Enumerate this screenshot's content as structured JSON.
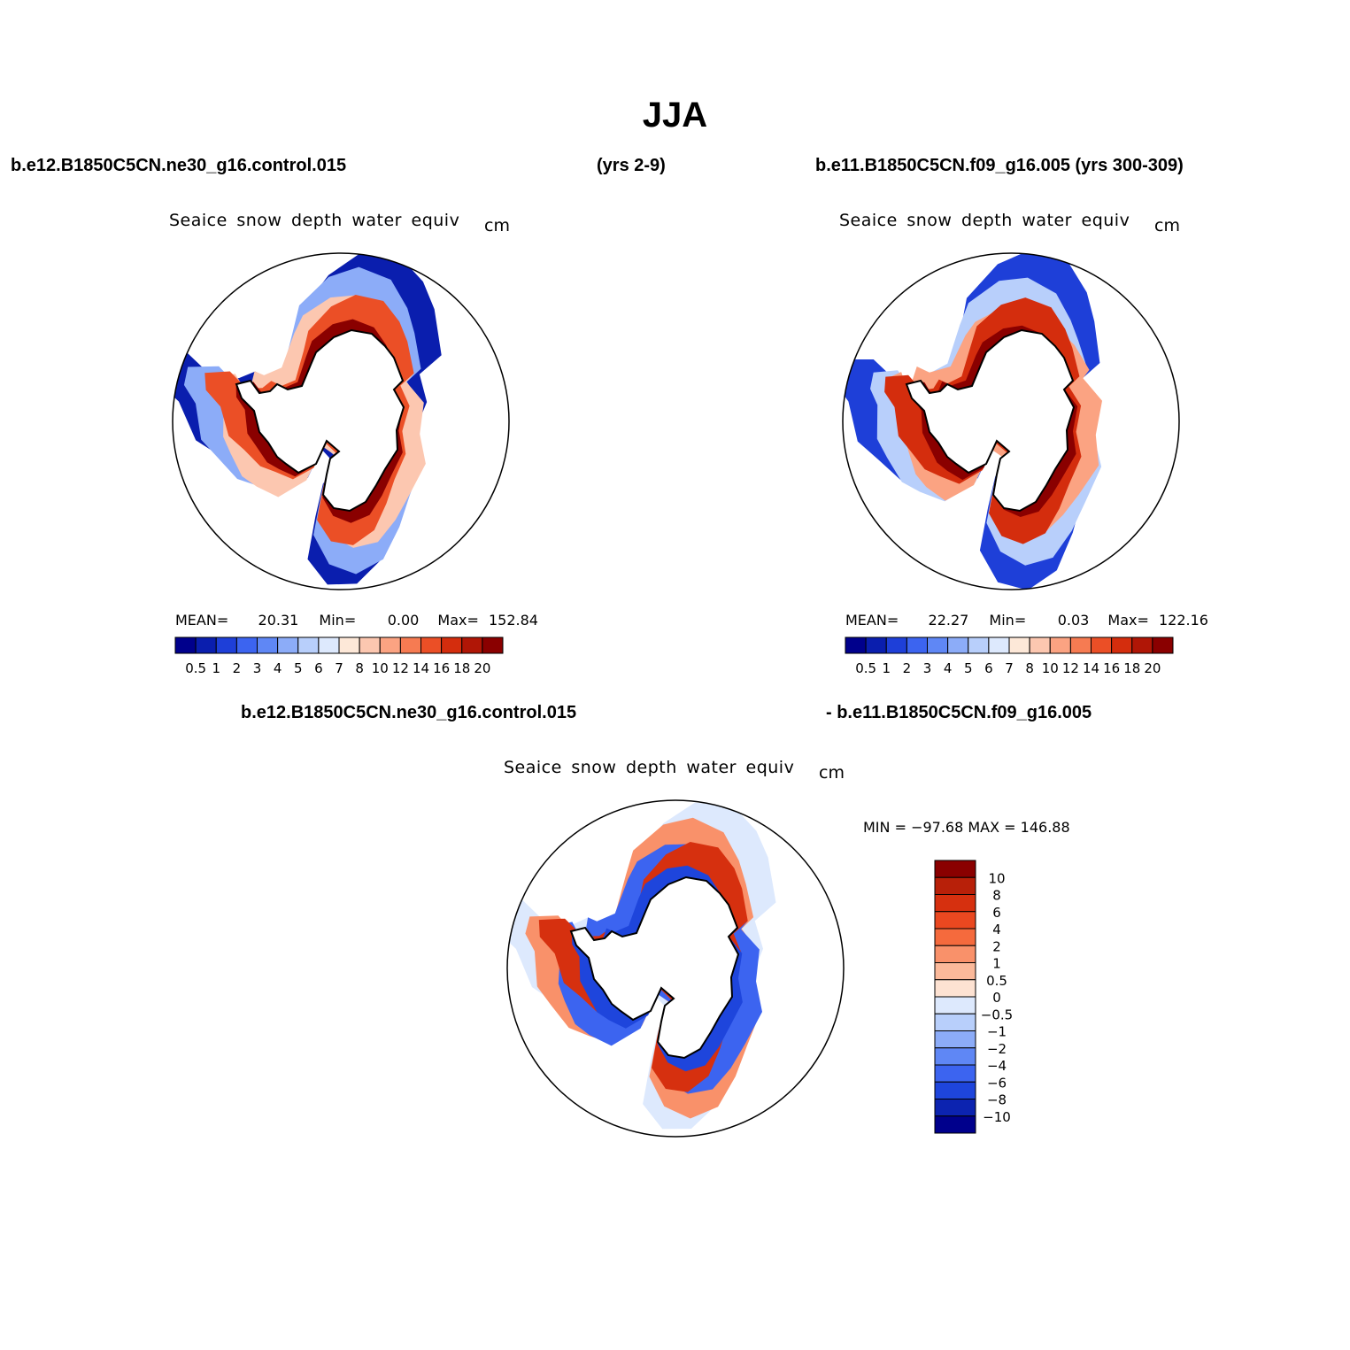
{
  "figure": {
    "title": "JJA",
    "case_a": "b.e12.B1850C5CN.ne30_g16.control.015",
    "case_a_years": "(yrs 2-9)",
    "case_b": "b.e11.B1850C5CN.f09_g16.005 (yrs 300-309)",
    "diff_case_a": "b.e12.B1850C5CN.ne30_g16.control.015",
    "diff_case_b": "- b.e11.B1850C5CN.f09_g16.005"
  },
  "chart_data": [
    {
      "type": "heatmap",
      "projection": "south-polar-stereographic",
      "title": "Seaice snow depth water equiv",
      "units": "cm",
      "stats": {
        "mean_label": "MEAN=",
        "mean": "20.31",
        "min_label": "Min=",
        "min": "0.00",
        "max_label": "Max=",
        "max": "152.84"
      },
      "colorbar": {
        "orientation": "horizontal",
        "levels": [
          "0.5",
          "1",
          "2",
          "3",
          "4",
          "5",
          "6",
          "7",
          "8",
          "10",
          "12",
          "14",
          "16",
          "18",
          "20"
        ],
        "colors": [
          "#00008c",
          "#0a1eae",
          "#1e3fd8",
          "#3c64f0",
          "#5f87f5",
          "#8cacf8",
          "#b8cffb",
          "#dde9fd",
          "#fde8d8",
          "#fcc7b0",
          "#fba382",
          "#f67b52",
          "#eb4f26",
          "#d42d0d",
          "#b01606",
          "#8a0000"
        ]
      }
    },
    {
      "type": "heatmap",
      "projection": "south-polar-stereographic",
      "title": "Seaice snow depth water equiv",
      "units": "cm",
      "stats": {
        "mean_label": "MEAN=",
        "mean": "22.27",
        "min_label": "Min=",
        "min": "0.03",
        "max_label": "Max=",
        "max": "122.16"
      },
      "colorbar": {
        "orientation": "horizontal",
        "levels": [
          "0.5",
          "1",
          "2",
          "3",
          "4",
          "5",
          "6",
          "7",
          "8",
          "10",
          "12",
          "14",
          "16",
          "18",
          "20"
        ],
        "colors": [
          "#00008c",
          "#0a1eae",
          "#1e3fd8",
          "#3c64f0",
          "#5f87f5",
          "#8cacf8",
          "#b8cffb",
          "#dde9fd",
          "#fde8d8",
          "#fcc7b0",
          "#fba382",
          "#f67b52",
          "#eb4f26",
          "#d42d0d",
          "#b01606",
          "#8a0000"
        ]
      }
    },
    {
      "type": "heatmap",
      "projection": "south-polar-stereographic",
      "title": "Seaice snow depth water equiv",
      "units": "cm",
      "stats": {
        "text": "MIN = −97.68 MAX = 146.88"
      },
      "colorbar": {
        "orientation": "vertical",
        "levels": [
          "10",
          "8",
          "6",
          "4",
          "2",
          "1",
          "0.5",
          "0",
          "−0.5",
          "−1",
          "−2",
          "−4",
          "−6",
          "−8",
          "−10"
        ],
        "colors": [
          "#8a0000",
          "#b82009",
          "#d6300f",
          "#ea4820",
          "#f56a3d",
          "#f9916a",
          "#fbb99a",
          "#fde2d2",
          "#dde9fd",
          "#b8cffb",
          "#8cacf8",
          "#5f87f5",
          "#3c64f0",
          "#1e45dc",
          "#0c23b0",
          "#00008c"
        ]
      }
    }
  ]
}
